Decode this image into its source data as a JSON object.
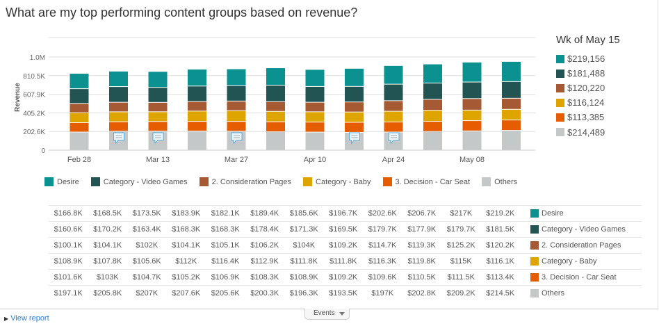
{
  "title": "What are my top performing content groups based on revenue?",
  "chart_data": {
    "type": "bar",
    "stacked": true,
    "ylabel": "Revenue",
    "ylim": [
      0,
      1013000
    ],
    "yticks": [
      "0",
      "202.6K",
      "405.2K",
      "607.9K",
      "810.5K",
      "1.0M"
    ],
    "grid": true,
    "legend_placement": "bottom",
    "x_tick_labels": [
      "Feb 28",
      "",
      "Mar 13",
      "",
      "Mar 27",
      "",
      "Apr 10",
      "",
      "Apr 24",
      "",
      "May 08",
      ""
    ],
    "note_weeks": [
      1,
      2,
      4,
      7,
      8
    ],
    "series": [
      {
        "name": "Desire",
        "color": "#0c9191",
        "values": [
          166.8,
          168.5,
          173.5,
          183.9,
          182.1,
          189.4,
          185.6,
          196.7,
          202.6,
          206.7,
          217,
          219.2
        ],
        "labels": [
          "$166.8K",
          "$168.5K",
          "$173.5K",
          "$183.9K",
          "$182.1K",
          "$189.4K",
          "$185.6K",
          "$196.7K",
          "$202.6K",
          "$206.7K",
          "$217K",
          "$219.2K"
        ]
      },
      {
        "name": "Category - Video Games",
        "color": "#235454",
        "values": [
          160.6,
          170.2,
          163.4,
          168.3,
          168.3,
          178.4,
          171.3,
          169.5,
          179.7,
          177.9,
          179.7,
          181.5
        ],
        "labels": [
          "$160.6K",
          "$170.2K",
          "$163.4K",
          "$168.3K",
          "$168.3K",
          "$178.4K",
          "$171.3K",
          "$169.5K",
          "$179.7K",
          "$177.9K",
          "$179.7K",
          "$181.5K"
        ]
      },
      {
        "name": "2. Consideration Pages",
        "color": "#a65a33",
        "values": [
          100.1,
          104.1,
          102,
          104.1,
          105.1,
          106.2,
          104,
          109.2,
          114.7,
          119.3,
          125.2,
          120.2
        ],
        "labels": [
          "$100.1K",
          "$104.1K",
          "$102K",
          "$104.1K",
          "$105.1K",
          "$106.2K",
          "$104K",
          "$109.2K",
          "$114.7K",
          "$119.3K",
          "$125.2K",
          "$120.2K"
        ]
      },
      {
        "name": "Category - Baby",
        "color": "#dea400",
        "values": [
          108.9,
          107.8,
          105.6,
          112,
          116.4,
          112.9,
          111.8,
          111.8,
          116.3,
          119.8,
          115,
          116.1
        ],
        "labels": [
          "$108.9K",
          "$107.8K",
          "$105.6K",
          "$112K",
          "$116.4K",
          "$112.9K",
          "$111.8K",
          "$111.8K",
          "$116.3K",
          "$119.8K",
          "$115K",
          "$116.1K"
        ]
      },
      {
        "name": "3. Decision - Car Seat",
        "color": "#e65c00",
        "values": [
          101.6,
          103,
          104.7,
          105.2,
          106.9,
          108.3,
          108.9,
          109.2,
          109.6,
          110.5,
          111.5,
          113.4
        ],
        "labels": [
          "$101.6K",
          "$103K",
          "$104.7K",
          "$105.2K",
          "$106.9K",
          "$108.3K",
          "$108.9K",
          "$109.2K",
          "$109.6K",
          "$110.5K",
          "$111.5K",
          "$113.4K"
        ]
      },
      {
        "name": "Others",
        "color": "#c4c8c8",
        "values": [
          197.1,
          205.8,
          207,
          207.6,
          205.6,
          200.3,
          196.3,
          193.5,
          197,
          202.8,
          209.2,
          214.5
        ],
        "labels": [
          "$197.1K",
          "$205.8K",
          "$207K",
          "$207.6K",
          "$205.6K",
          "$200.3K",
          "$196.3K",
          "$193.5K",
          "$197K",
          "$202.8K",
          "$209.2K",
          "$214.5K"
        ]
      }
    ]
  },
  "side_panel": {
    "heading": "Wk of May 15",
    "values": [
      "$219,156",
      "$181,488",
      "$120,220",
      "$116,124",
      "$113,385",
      "$214,489"
    ]
  },
  "footer": {
    "view_report": "View report",
    "events": "Events"
  }
}
